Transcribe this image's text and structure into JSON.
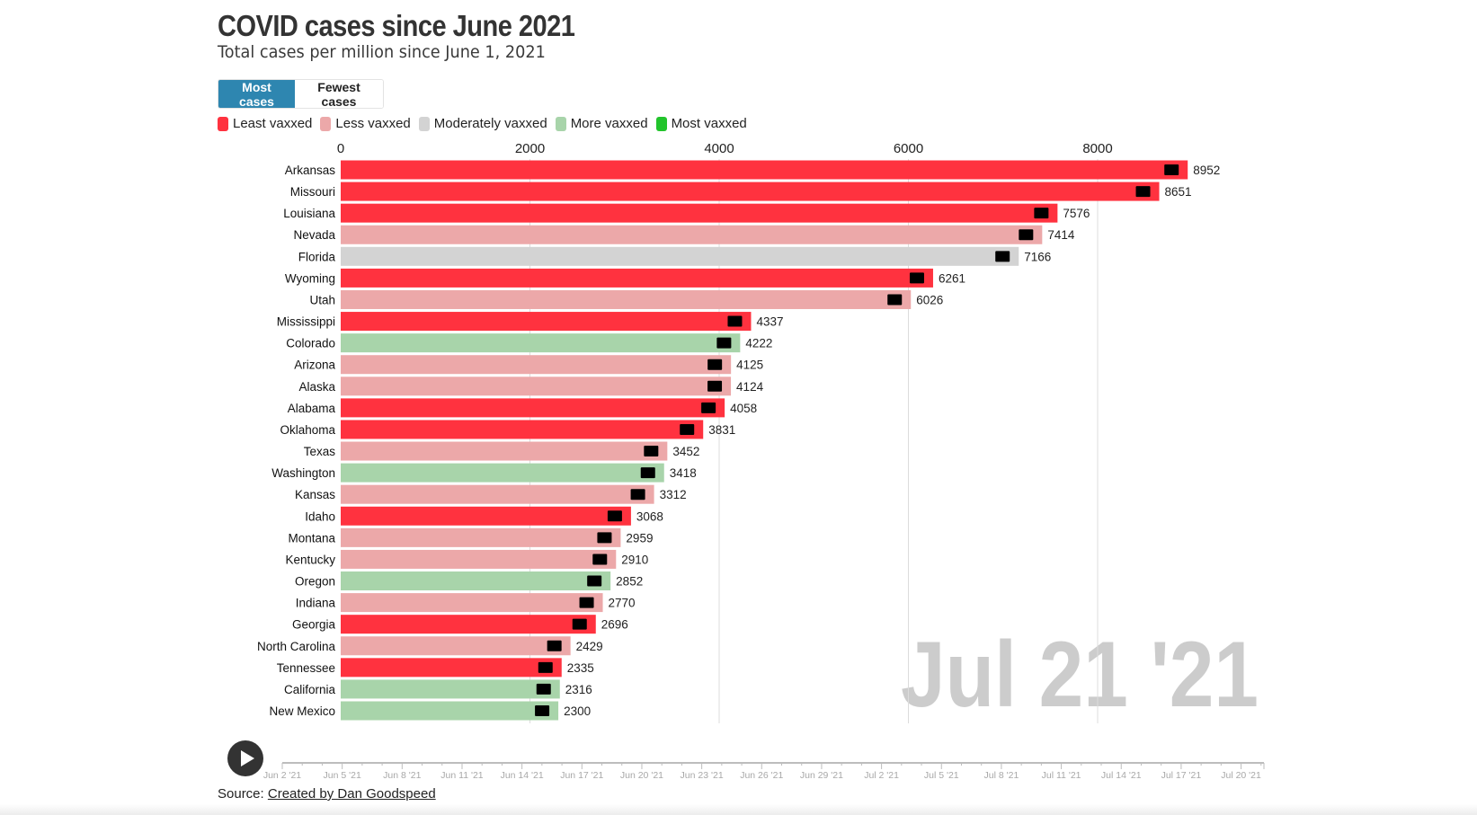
{
  "header": {
    "title": "COVID cases since June 2021",
    "subtitle": "Total cases per million since June 1, 2021"
  },
  "toggle": {
    "most_label": "Most cases",
    "fewest_label": "Fewest cases",
    "selected": "Most cases"
  },
  "legend": [
    {
      "label": "Least vaxxed",
      "color": "#ff323f"
    },
    {
      "label": "Less vaxxed",
      "color": "#eca8a9"
    },
    {
      "label": "Moderately vaxxed",
      "color": "#d3d3d3"
    },
    {
      "label": "More vaxxed",
      "color": "#a8d4aa"
    },
    {
      "label": "Most vaxxed",
      "color": "#22c42c"
    }
  ],
  "chart_data": {
    "type": "bar",
    "orientation": "horizontal",
    "title": "COVID cases since June 2021",
    "subtitle": "Total cases per million since June 1, 2021",
    "xlabel": "",
    "ylabel": "",
    "xlim": [
      0,
      9000
    ],
    "x_ticks": [
      0,
      2000,
      4000,
      6000,
      8000
    ],
    "grid": true,
    "legend_position": "top-left",
    "current_date": "Jul 21 '21",
    "categories": [
      "Arkansas",
      "Missouri",
      "Louisiana",
      "Nevada",
      "Florida",
      "Wyoming",
      "Utah",
      "Mississippi",
      "Colorado",
      "Arizona",
      "Alaska",
      "Alabama",
      "Oklahoma",
      "Texas",
      "Washington",
      "Kansas",
      "Idaho",
      "Montana",
      "Kentucky",
      "Oregon",
      "Indiana",
      "Georgia",
      "North Carolina",
      "Tennessee",
      "California",
      "New Mexico"
    ],
    "values": [
      8952,
      8651,
      7576,
      7414,
      7166,
      6261,
      6026,
      4337,
      4222,
      4125,
      4124,
      4058,
      3831,
      3452,
      3418,
      3312,
      3068,
      2959,
      2910,
      2852,
      2770,
      2696,
      2429,
      2335,
      2316,
      2300
    ],
    "vax_group": [
      "Least vaxxed",
      "Least vaxxed",
      "Least vaxxed",
      "Less vaxxed",
      "Moderately vaxxed",
      "Least vaxxed",
      "Less vaxxed",
      "Least vaxxed",
      "More vaxxed",
      "Less vaxxed",
      "Less vaxxed",
      "Least vaxxed",
      "Least vaxxed",
      "Less vaxxed",
      "More vaxxed",
      "Less vaxxed",
      "Least vaxxed",
      "Less vaxxed",
      "Less vaxxed",
      "More vaxxed",
      "Less vaxxed",
      "Least vaxxed",
      "Less vaxxed",
      "Least vaxxed",
      "More vaxxed",
      "More vaxxed"
    ]
  },
  "timeline": {
    "start": "Jun 1 '21",
    "end": "Jul 21 '21",
    "current": "Jul 21 '21",
    "tick_labels": [
      "Jun 2 '21",
      "Jun 5 '21",
      "Jun 8 '21",
      "Jun 11 '21",
      "Jun 14 '21",
      "Jun 17 '21",
      "Jun 20 '21",
      "Jun 23 '21",
      "Jun 26 '21",
      "Jun 29 '21",
      "Jul 2 '21",
      "Jul 5 '21",
      "Jul 8 '21",
      "Jul 11 '21",
      "Jul 14 '21",
      "Jul 17 '21",
      "Jul 20 '21"
    ],
    "play_icon": "play-icon"
  },
  "source": {
    "prefix": "Source:",
    "link_text": "Created by Dan Goodspeed"
  }
}
